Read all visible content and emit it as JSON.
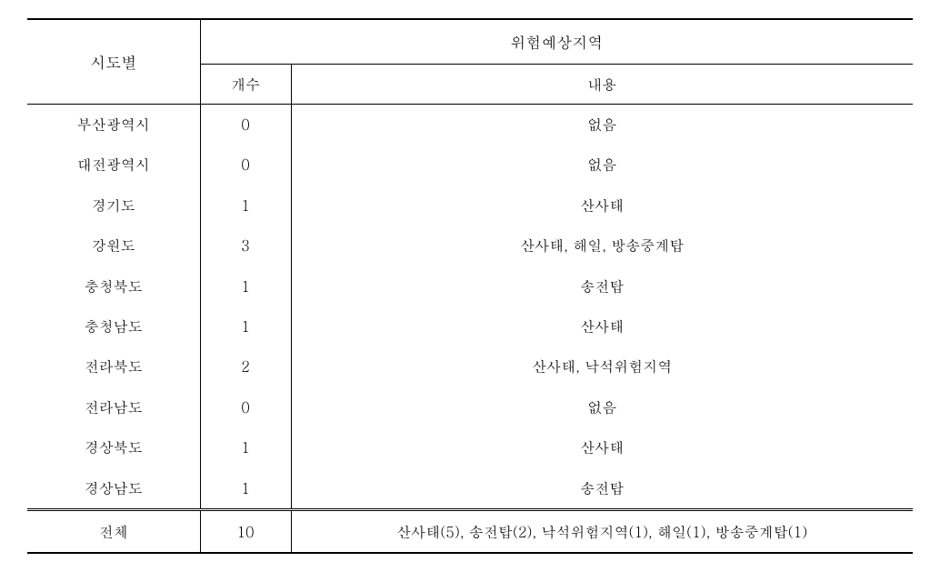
{
  "table": {
    "headers": {
      "region": "시도별",
      "hazardArea": "위험예상지역",
      "count": "개수",
      "content": "내용"
    },
    "rows": [
      {
        "region": "부산광역시",
        "count": "0",
        "content": "없음"
      },
      {
        "region": "대전광역시",
        "count": "0",
        "content": "없음"
      },
      {
        "region": "경기도",
        "count": "1",
        "content": "산사태"
      },
      {
        "region": "강원도",
        "count": "3",
        "content": "산사태, 해일, 방송중계탑"
      },
      {
        "region": "충청북도",
        "count": "1",
        "content": "송전탑"
      },
      {
        "region": "충청남도",
        "count": "1",
        "content": "산사태"
      },
      {
        "region": "전라북도",
        "count": "2",
        "content": "산사태, 낙석위험지역"
      },
      {
        "region": "전라남도",
        "count": "0",
        "content": "없음"
      },
      {
        "region": "경상북도",
        "count": "1",
        "content": "산사태"
      },
      {
        "region": "경상남도",
        "count": "1",
        "content": "송전탑"
      }
    ],
    "total": {
      "label": "전체",
      "count": "10",
      "content": "산사태(5), 송전탑(2), 낙석위험지역(1), 해일(1), 방송중계탑(1)"
    },
    "style": {
      "fontFamily": "Batang, serif",
      "fontSize": 16,
      "headerFontSize": 17,
      "borderColor": "#000000",
      "backgroundColor": "#ffffff",
      "textColor": "#000000",
      "outerBorderWidth": 2,
      "innerBorderWidth": 1,
      "doubleBorderWidth": 3,
      "columnWidths": {
        "region": 190,
        "count": 100
      }
    }
  }
}
